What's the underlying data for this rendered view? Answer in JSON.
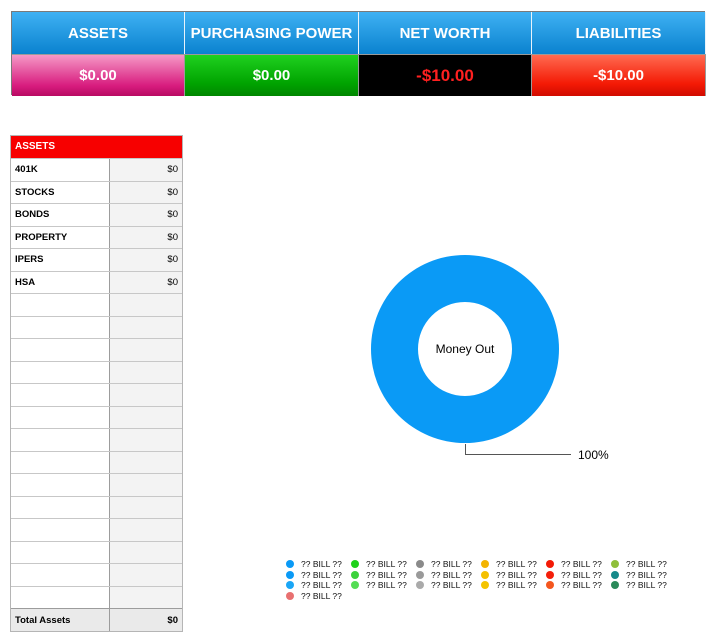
{
  "summary": {
    "assets": {
      "label": "ASSETS",
      "value": "$0.00"
    },
    "purchasing_power": {
      "label": "PURCHASING POWER",
      "value": "$0.00"
    },
    "net_worth": {
      "label": "NET WORTH",
      "value": "-$10.00"
    },
    "liabilities": {
      "label": "LIABILITIES",
      "value": "-$10.00"
    }
  },
  "assets_table": {
    "title": "ASSETS",
    "rows": [
      {
        "name": "401K",
        "amount": "$0"
      },
      {
        "name": "STOCKS",
        "amount": "$0"
      },
      {
        "name": "BONDS",
        "amount": "$0"
      },
      {
        "name": "PROPERTY",
        "amount": "$0"
      },
      {
        "name": "IPERS",
        "amount": "$0"
      },
      {
        "name": "HSA",
        "amount": "$0"
      },
      {
        "name": "",
        "amount": ""
      },
      {
        "name": "",
        "amount": ""
      },
      {
        "name": "",
        "amount": ""
      },
      {
        "name": "",
        "amount": ""
      },
      {
        "name": "",
        "amount": ""
      },
      {
        "name": "",
        "amount": ""
      },
      {
        "name": "",
        "amount": ""
      },
      {
        "name": "",
        "amount": ""
      },
      {
        "name": "",
        "amount": ""
      },
      {
        "name": "",
        "amount": ""
      },
      {
        "name": "",
        "amount": ""
      },
      {
        "name": "",
        "amount": ""
      },
      {
        "name": "",
        "amount": ""
      },
      {
        "name": "",
        "amount": ""
      }
    ],
    "total_label": "Total Assets",
    "total_value": "$0"
  },
  "chart_data": {
    "type": "pie",
    "center_label": "Money Out",
    "slices": [
      {
        "label": "?? BILL ??",
        "value": 100,
        "percent_label": "100%",
        "color": "#0a9af6"
      }
    ],
    "legend": [
      {
        "label": "?? BILL ??",
        "color": "#0a9af6"
      },
      {
        "label": "?? BILL ??",
        "color": "#1ed11a"
      },
      {
        "label": "?? BILL ??",
        "color": "#8a8a8a"
      },
      {
        "label": "?? BILL ??",
        "color": "#f3b400"
      },
      {
        "label": "?? BILL ??",
        "color": "#f31a06"
      },
      {
        "label": "?? BILL ??",
        "color": "#8fbf3a"
      },
      {
        "label": "?? BILL ??",
        "color": "#0a9af6"
      },
      {
        "label": "?? BILL ??",
        "color": "#3cd23c"
      },
      {
        "label": "?? BILL ??",
        "color": "#9a9a9a"
      },
      {
        "label": "?? BILL ??",
        "color": "#f4c000"
      },
      {
        "label": "?? BILL ??",
        "color": "#f41f0a"
      },
      {
        "label": "?? BILL ??",
        "color": "#168a8a"
      },
      {
        "label": "?? BILL ??",
        "color": "#1aa6f6"
      },
      {
        "label": "?? BILL ??",
        "color": "#55dd55"
      },
      {
        "label": "?? BILL ??",
        "color": "#aaaaaa"
      },
      {
        "label": "?? BILL ??",
        "color": "#f4c400"
      },
      {
        "label": "?? BILL ??",
        "color": "#f4561e"
      },
      {
        "label": "?? BILL ??",
        "color": "#2a8a5a"
      },
      {
        "label": "?? BILL ??",
        "color": "#e87070"
      }
    ],
    "legend_position": "bottom"
  }
}
